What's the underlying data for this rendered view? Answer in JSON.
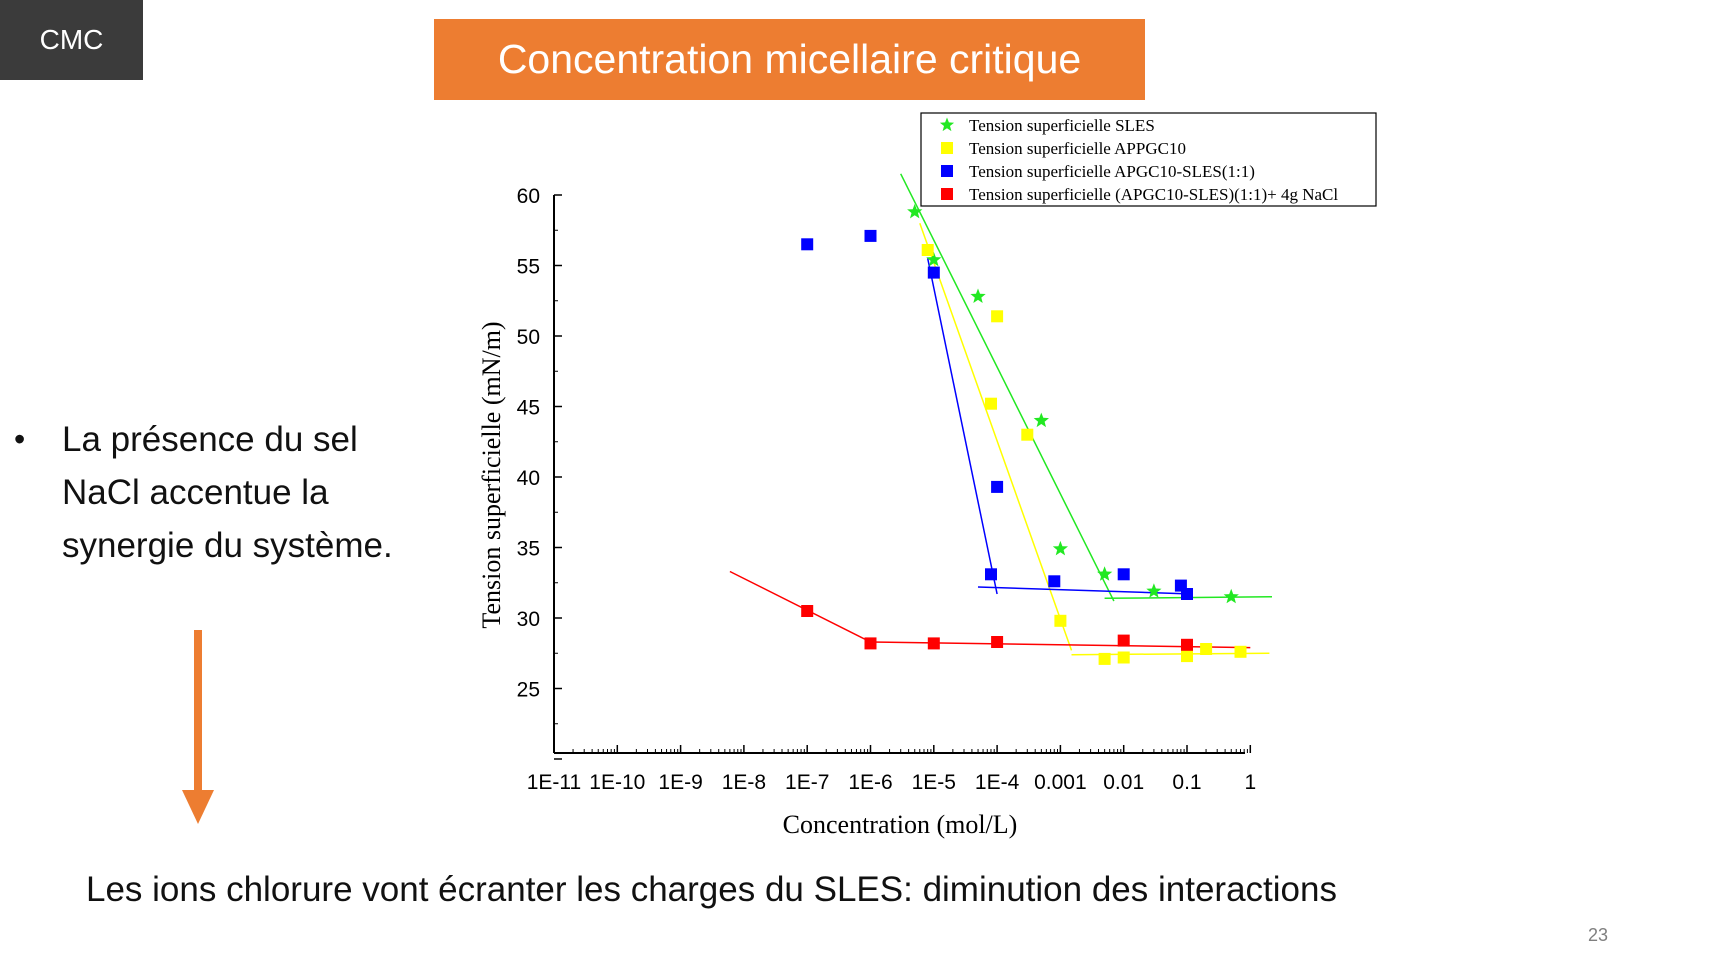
{
  "slide": {
    "section_tag": "CMC",
    "title": "Concentration micellaire critique",
    "bullet": "La présence du sel NaCl accentue la synergie du système.",
    "bottom_text": "Les ions chlorure vont écranter les charges du SLES: diminution des interactions",
    "page_number": "23"
  },
  "colors": {
    "accent": "#ed7d31",
    "tag_bg": "#3b3b3b",
    "arrow": "#ed7d31"
  },
  "chart_data": {
    "type": "scatter",
    "xscale": "log10",
    "xlabel": "Concentration (mol/L)",
    "ylabel": "Tension superficielle (mN/m)",
    "xlim": [
      1e-11,
      1
    ],
    "ylim": [
      20,
      60
    ],
    "xticks": [
      "1E-11",
      "1E-10",
      "1E-9",
      "1E-8",
      "1E-7",
      "1E-6",
      "1E-5",
      "1E-4",
      "0.001",
      "0.01",
      "0.1",
      "1"
    ],
    "yticks": [
      "25",
      "30",
      "35",
      "40",
      "45",
      "50",
      "55",
      "60"
    ],
    "legend_position": "top-right",
    "series": [
      {
        "name": "Tension superficielle SLES",
        "color": "#22e822",
        "marker": "star",
        "points": [
          [
            5e-06,
            58.8
          ],
          [
            1e-05,
            55.4
          ],
          [
            5e-05,
            52.8
          ],
          [
            0.0005,
            44.0
          ],
          [
            0.001,
            34.9
          ],
          [
            0.005,
            33.1
          ],
          [
            0.03,
            31.9
          ],
          [
            0.5,
            31.5
          ]
        ],
        "fit_lines": [
          [
            [
              3e-06,
              61.5
            ],
            [
              0.007,
              31.2
            ]
          ],
          [
            [
              0.005,
              31.4
            ],
            [
              2.2,
              31.5
            ]
          ]
        ]
      },
      {
        "name": "Tension superficielle  APPGC10",
        "color": "#ffff00",
        "marker": "square",
        "points": [
          [
            8e-06,
            56.1
          ],
          [
            0.0001,
            51.4
          ],
          [
            8e-05,
            45.2
          ],
          [
            0.0003,
            43.0
          ],
          [
            0.001,
            29.8
          ],
          [
            0.005,
            27.1
          ],
          [
            0.01,
            27.2
          ],
          [
            0.1,
            27.3
          ],
          [
            0.2,
            27.8
          ],
          [
            0.7,
            27.6
          ]
        ],
        "fit_lines": [
          [
            [
              6e-06,
              58.0
            ],
            [
              0.0015,
              27.7
            ]
          ],
          [
            [
              0.0015,
              27.4
            ],
            [
              2.0,
              27.5
            ]
          ]
        ]
      },
      {
        "name": "Tension superficielle APGC10-SLES(1:1)",
        "color": "#0000ff",
        "marker": "square",
        "points": [
          [
            1e-07,
            56.5
          ],
          [
            1e-06,
            57.1
          ],
          [
            1e-05,
            54.5
          ],
          [
            0.0001,
            39.3
          ],
          [
            8e-05,
            33.1
          ],
          [
            0.0008,
            32.6
          ],
          [
            0.01,
            33.1
          ],
          [
            0.08,
            32.3
          ],
          [
            0.1,
            31.7
          ]
        ],
        "fit_lines": [
          [
            [
              8e-06,
              55.5
            ],
            [
              0.0001,
              31.7
            ]
          ],
          [
            [
              5e-05,
              32.2
            ],
            [
              0.12,
              31.7
            ]
          ]
        ]
      },
      {
        "name": "Tension superficielle (APGC10-SLES)(1:1)+ 4g NaCl",
        "color": "#ff0000",
        "marker": "square",
        "points": [
          [
            1e-07,
            30.5
          ],
          [
            1e-06,
            28.2
          ],
          [
            1e-05,
            28.2
          ],
          [
            0.0001,
            28.3
          ],
          [
            0.01,
            28.4
          ],
          [
            0.1,
            28.1
          ]
        ],
        "fit_lines": [
          [
            [
              6e-09,
              33.3
            ],
            [
              1e-06,
              28.3
            ]
          ],
          [
            [
              1e-06,
              28.3
            ],
            [
              1.0,
              27.9
            ]
          ]
        ]
      }
    ]
  }
}
